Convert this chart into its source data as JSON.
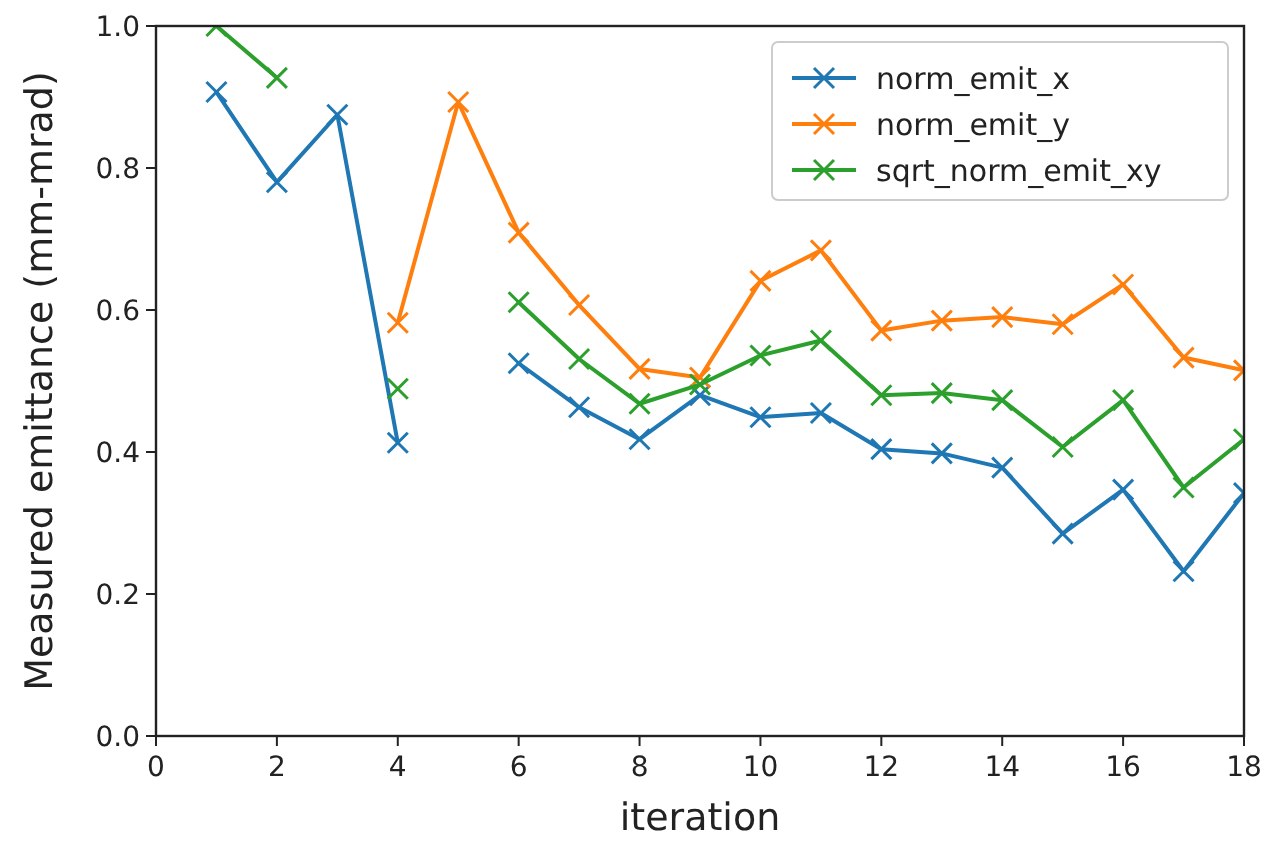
{
  "chart_data": {
    "type": "line",
    "xlabel": "iteration",
    "ylabel": "Measured emittance (mm-mrad)",
    "x": [
      1,
      2,
      3,
      4,
      5,
      6,
      7,
      8,
      9,
      10,
      11,
      12,
      13,
      14,
      15,
      16,
      17,
      18
    ],
    "series": [
      {
        "name": "norm_emit_x",
        "color": "#1f77b4",
        "values": [
          0.907,
          0.78,
          0.875,
          0.413,
          null,
          0.525,
          0.463,
          0.418,
          0.48,
          0.449,
          0.455,
          0.404,
          0.398,
          0.378,
          0.285,
          0.347,
          0.232,
          0.342
        ]
      },
      {
        "name": "norm_emit_y",
        "color": "#ff7f0e",
        "values": [
          null,
          null,
          null,
          0.582,
          0.893,
          0.709,
          0.607,
          0.517,
          0.505,
          0.641,
          0.684,
          0.571,
          0.585,
          0.59,
          0.58,
          0.636,
          0.533,
          0.515
        ]
      },
      {
        "name": "sqrt_norm_emit_xy",
        "color": "#2ca02c",
        "values": [
          1.0,
          0.927,
          null,
          0.489,
          null,
          0.611,
          0.531,
          0.468,
          0.495,
          0.536,
          0.557,
          0.48,
          0.483,
          0.473,
          0.407,
          0.473,
          0.35,
          0.418
        ]
      }
    ],
    "xlim": [
      0,
      18
    ],
    "xticks": [
      0,
      2,
      4,
      6,
      8,
      10,
      12,
      14,
      16,
      18
    ],
    "ylim": [
      0,
      1.0
    ],
    "yticks": [
      {
        "value": 0,
        "label": "0.0"
      },
      {
        "value": 0.2,
        "label": "0.2"
      },
      {
        "value": 0.4,
        "label": "0.4"
      },
      {
        "value": 0.6,
        "label": "0.6"
      },
      {
        "value": 0.8,
        "label": "0.8"
      },
      {
        "value": 1.0,
        "label": "1.0"
      }
    ],
    "marker": "cross",
    "line_style": "solid",
    "legend": "top right",
    "grid": false
  }
}
